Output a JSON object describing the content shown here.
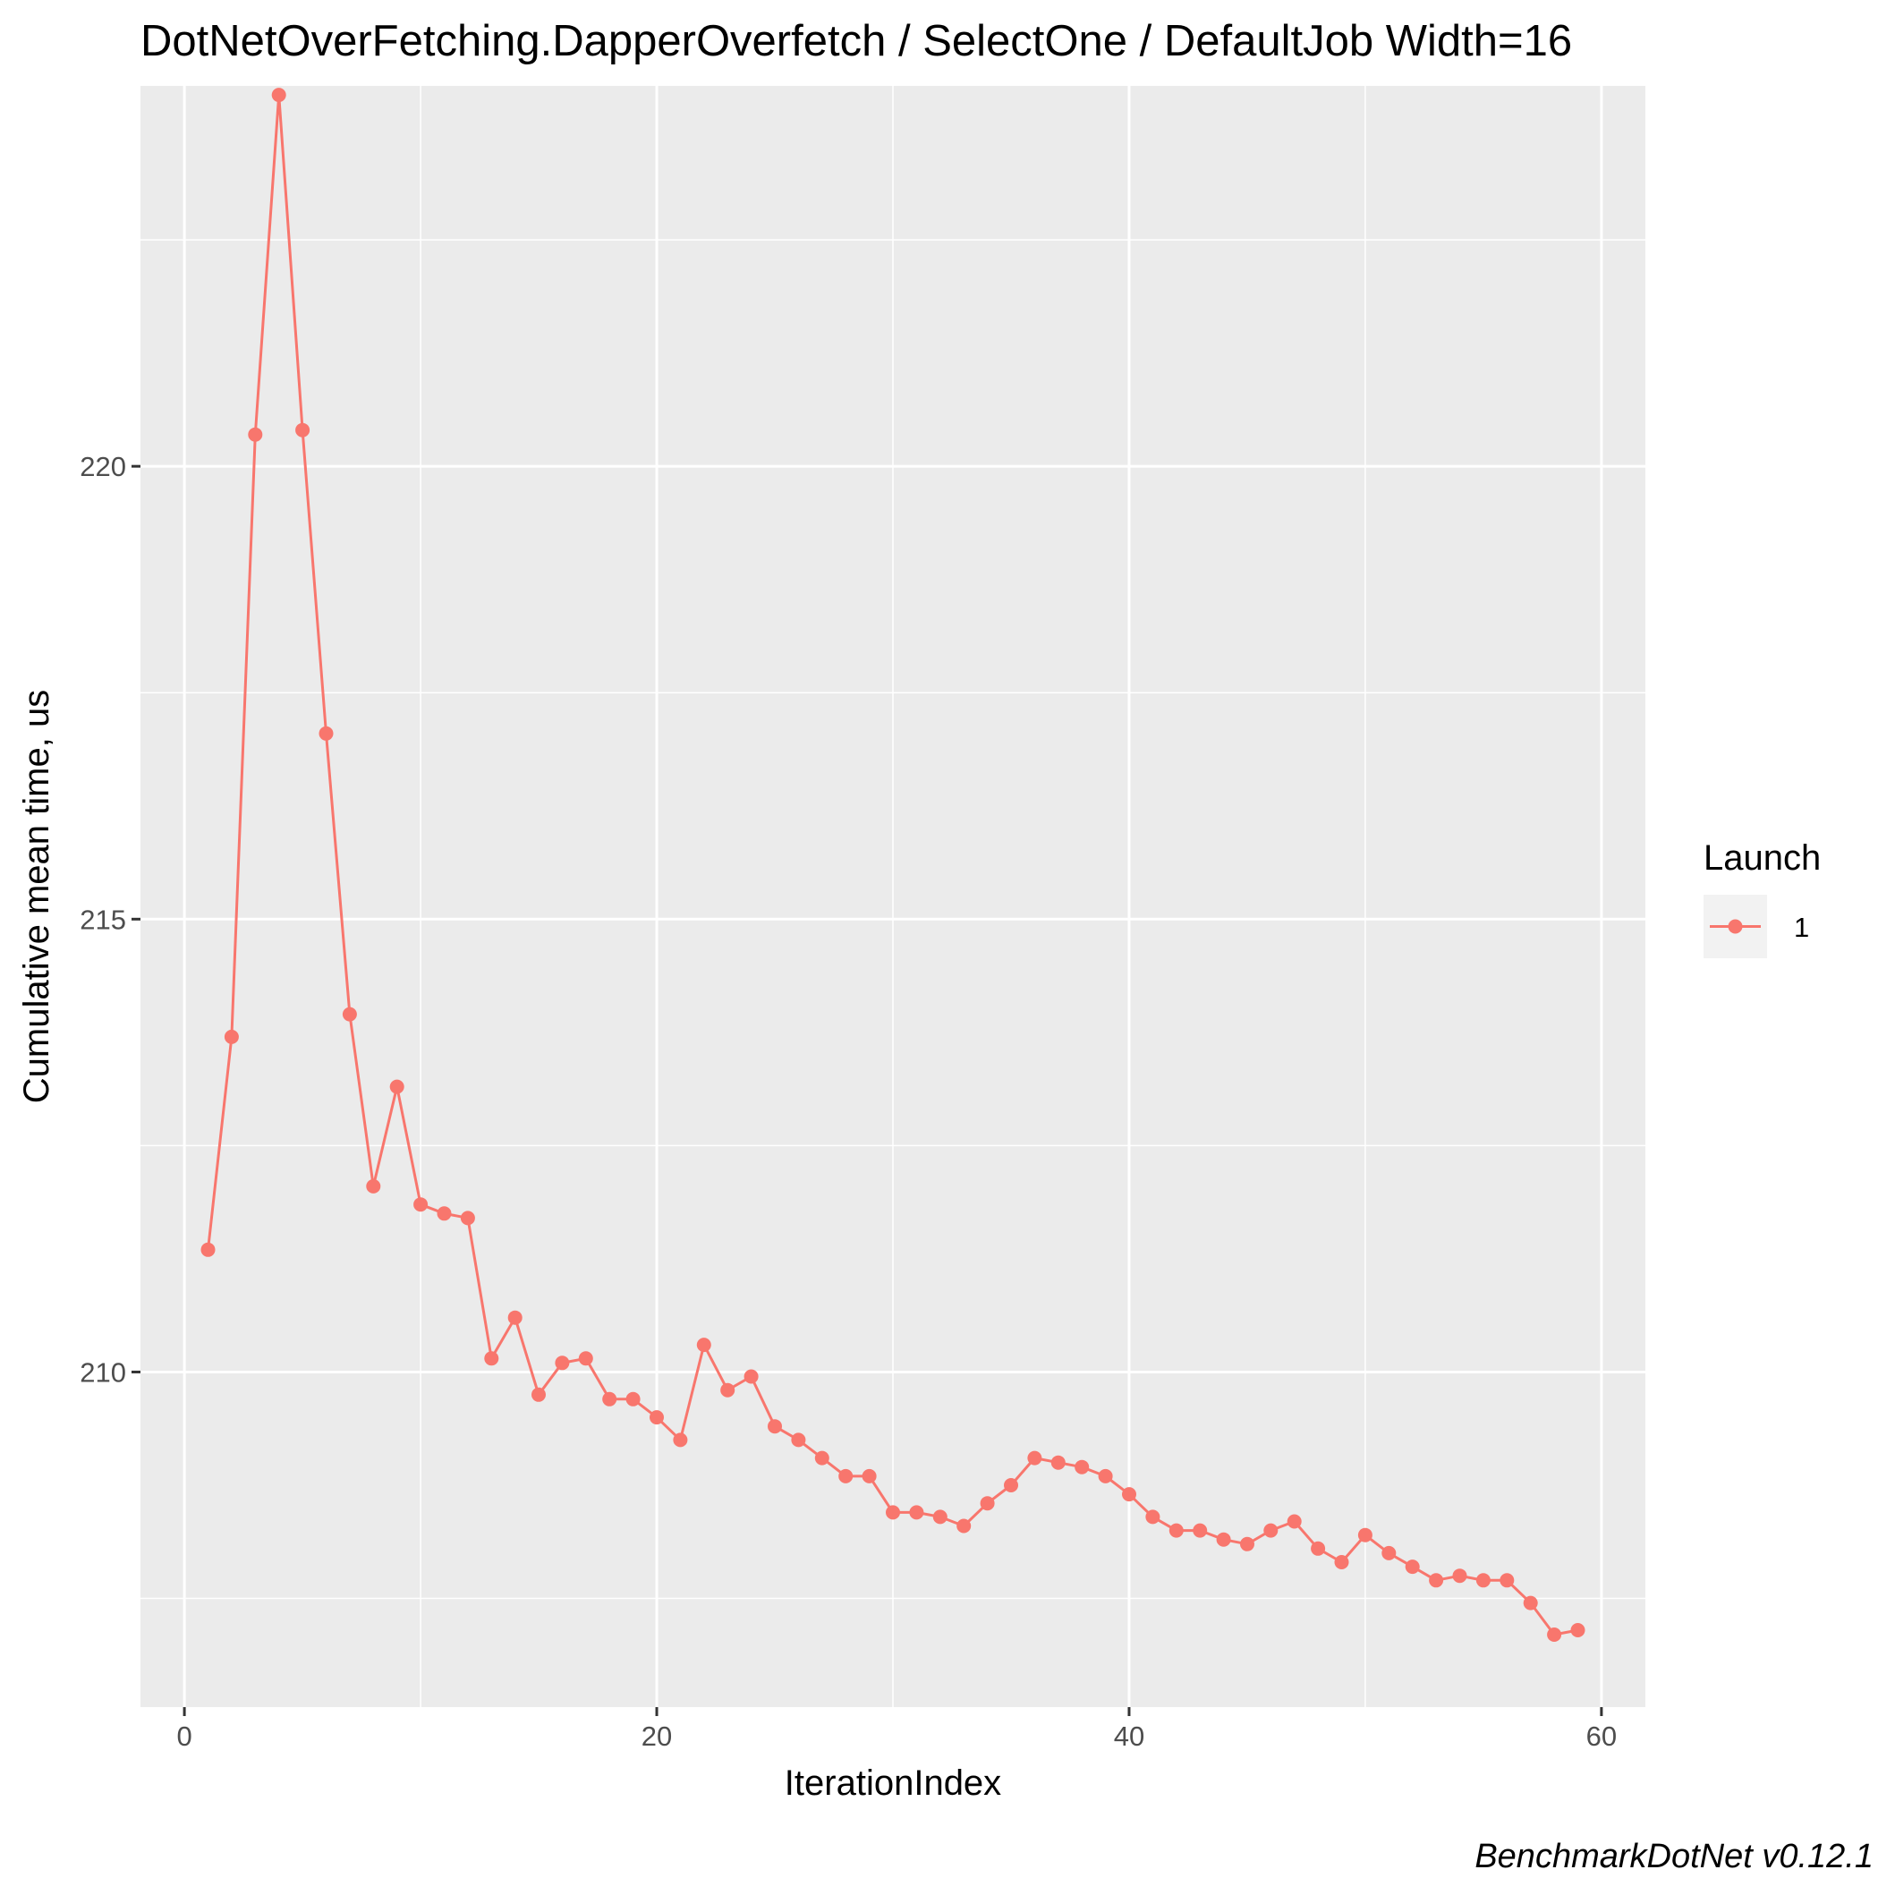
{
  "chart_data": {
    "type": "line",
    "title": "DotNetOverFetching.DapperOverfetch / SelectOne / DefaultJob Width=16",
    "xlabel": "IterationIndex",
    "ylabel": "Cumulative mean time, us",
    "xlim": [
      -1.86,
      61.86
    ],
    "ylim": [
      206.3,
      224.2
    ],
    "xticks": [
      0,
      20,
      40,
      60
    ],
    "xtick_labels": [
      "0",
      "20",
      "40",
      "60"
    ],
    "yticks": [
      210,
      215,
      220
    ],
    "ytick_labels": [
      "210",
      "215",
      "220"
    ],
    "x_minor_ticks": [
      10,
      30,
      50
    ],
    "y_minor_ticks": [
      207.5,
      212.5,
      217.5,
      222.5
    ],
    "grid": true,
    "legend": {
      "title": "Launch",
      "position": "right"
    },
    "caption": "BenchmarkDotNet v0.12.1",
    "series": [
      {
        "name": "1",
        "color": "#F8766D",
        "x": [
          1,
          2,
          3,
          4,
          5,
          6,
          7,
          8,
          9,
          10,
          11,
          12,
          13,
          14,
          15,
          16,
          17,
          18,
          19,
          20,
          21,
          22,
          23,
          24,
          25,
          26,
          27,
          28,
          29,
          30,
          31,
          32,
          33,
          34,
          35,
          36,
          37,
          38,
          39,
          40,
          41,
          42,
          43,
          44,
          45,
          46,
          47,
          48,
          49,
          50,
          51,
          52,
          53,
          54,
          55,
          56,
          57,
          58,
          59
        ],
        "y": [
          211.35,
          213.7,
          220.35,
          224.1,
          220.4,
          217.05,
          213.95,
          212.05,
          213.15,
          211.85,
          211.75,
          211.7,
          210.15,
          210.6,
          209.75,
          210.1,
          210.15,
          209.7,
          209.7,
          209.5,
          209.25,
          210.3,
          209.8,
          209.95,
          209.4,
          209.25,
          209.05,
          208.85,
          208.85,
          208.45,
          208.45,
          208.4,
          208.3,
          208.55,
          208.75,
          209.05,
          209.0,
          208.95,
          208.85,
          208.65,
          208.4,
          208.25,
          208.25,
          208.15,
          208.1,
          208.25,
          208.35,
          208.05,
          207.9,
          208.2,
          208.0,
          207.85,
          207.7,
          207.75,
          207.7,
          207.7,
          207.45,
          207.1,
          207.15
        ]
      }
    ]
  }
}
